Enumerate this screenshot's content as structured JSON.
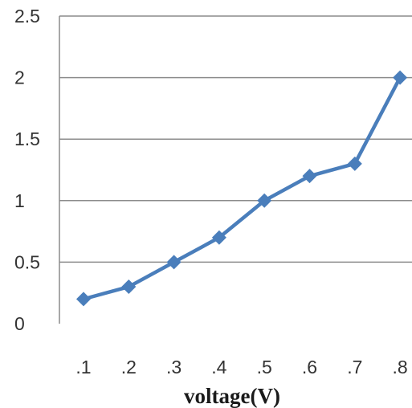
{
  "chart_data": {
    "type": "line",
    "categories": [
      ".1",
      ".2",
      ".3",
      ".4",
      ".5",
      ".6",
      ".7",
      ".8"
    ],
    "series": [
      {
        "values": [
          0.2,
          0.3,
          0.5,
          0.7,
          1.0,
          1.2,
          1.3,
          2.0
        ],
        "color": "#4a7ebb",
        "marker": "diamond"
      }
    ],
    "title": "",
    "xlabel": "voltage(V)",
    "ylabel": "",
    "ylim": [
      0,
      2.5
    ],
    "yticks": [
      "0",
      "0.5",
      "1",
      "1.5",
      "2",
      "2.5"
    ],
    "grid": "horizontal",
    "legend": "none",
    "colors": {
      "grid": "#8c8c8c",
      "axis": "#8c8c8c",
      "line": "#4a7ebb"
    }
  }
}
